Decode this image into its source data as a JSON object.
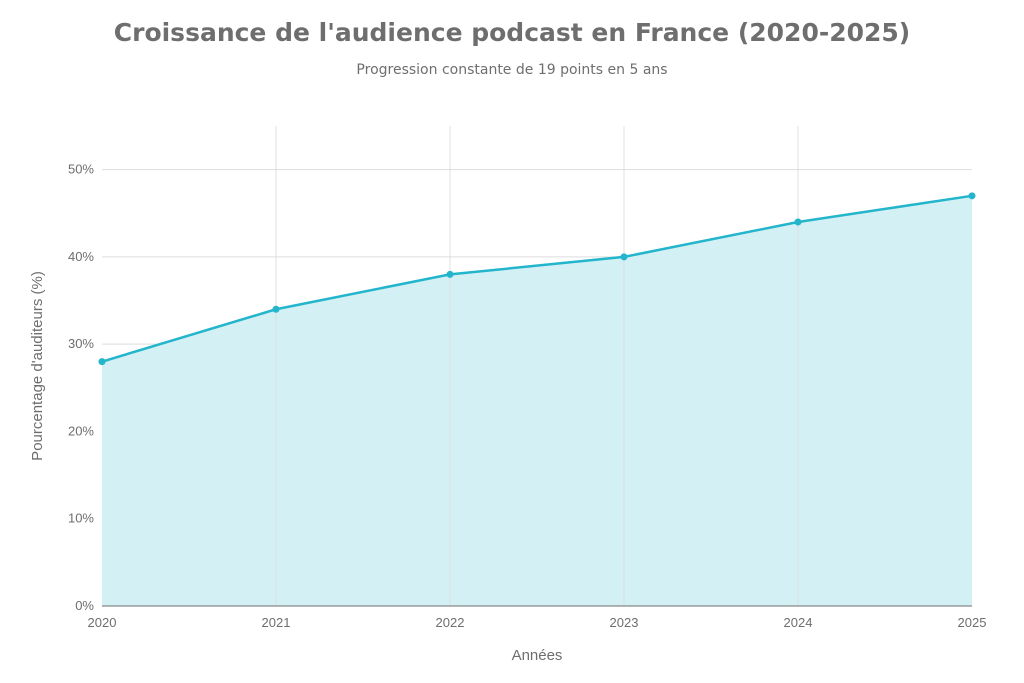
{
  "chart_data": {
    "type": "area",
    "title": "Croissance de l'audience podcast en France (2020-2025)",
    "subtitle": "Progression constante de 19 points en 5 ans",
    "xlabel": "Années",
    "ylabel": "Pourcentage d'auditeurs (%)",
    "categories": [
      "2020",
      "2021",
      "2022",
      "2023",
      "2024",
      "2025"
    ],
    "values": [
      28,
      34,
      38,
      40,
      44,
      47
    ],
    "ylim": [
      0,
      55
    ],
    "yticks": [
      0,
      10,
      20,
      30,
      40,
      50
    ],
    "ytick_labels": [
      "0%",
      "10%",
      "20%",
      "30%",
      "40%",
      "50%"
    ],
    "grid": true,
    "legend": "none",
    "colors": {
      "line": "#22b5cc",
      "fill": "#d3f0f4",
      "grid": "#dddddd"
    }
  }
}
